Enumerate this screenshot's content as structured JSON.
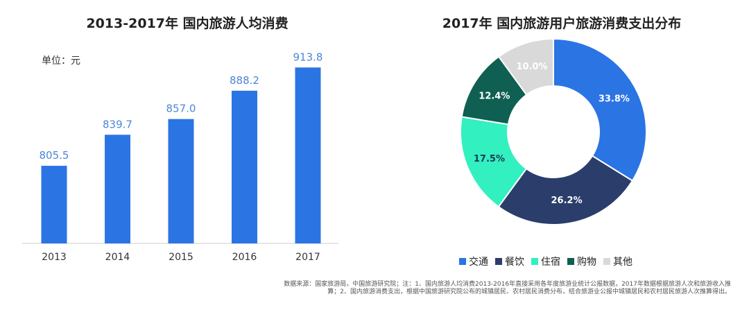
{
  "charts_titles": {
    "bar": "2013-2017年 国内旅游人均消费",
    "pie": "2017年 国内旅游用户旅游消费支出分布"
  },
  "unit_label": "单位：元",
  "source_note": "数据来源：国家旅游局，中国旅游研究院；注：1、国内旅游人均消费2013-2016年直接采用各年度旅游业统计公报数据，2017年数据根据旅游人次和旅游收入推算；2、国内旅游消费支出，根据中国旅游研究院公布的城镇居民、农村居民消费分布，结合旅游业公报中城镇居民和农村居民旅游人次推算得出。",
  "colors": {
    "bar": "#2b74e4",
    "bar_label": "#4a86d8",
    "axis": "#cccccc"
  },
  "chart_data": [
    {
      "type": "bar",
      "title": "2013-2017年 国内旅游人均消费",
      "categories": [
        "2013",
        "2014",
        "2015",
        "2016",
        "2017"
      ],
      "values": [
        805.5,
        839.7,
        857.0,
        888.2,
        913.8
      ],
      "value_labels": [
        "805.5",
        "839.7",
        "857.0",
        "888.2",
        "913.8"
      ],
      "ylim": [
        720,
        940
      ],
      "unit": "单位：元",
      "grid": false
    },
    {
      "type": "pie",
      "title": "2017年 国内旅游用户旅游消费支出分布",
      "donut": true,
      "legend_position": "bottom",
      "slices": [
        {
          "name": "交通",
          "value": 33.8,
          "label": "33.8%",
          "color": "#2b74e4",
          "label_color": "#ffffff"
        },
        {
          "name": "餐饮",
          "value": 26.2,
          "label": "26.2%",
          "color": "#2a3d6b",
          "label_color": "#ffffff"
        },
        {
          "name": "住宿",
          "value": 17.5,
          "label": "17.5%",
          "color": "#33f0c0",
          "label_color": "#1a3a5a"
        },
        {
          "name": "购物",
          "value": 12.4,
          "label": "12.4%",
          "color": "#0f5f52",
          "label_color": "#ffffff"
        },
        {
          "name": "其他",
          "value": 10.0,
          "label": "10.0%",
          "color": "#d9d9d9",
          "label_color": "#ffffff"
        }
      ]
    }
  ]
}
